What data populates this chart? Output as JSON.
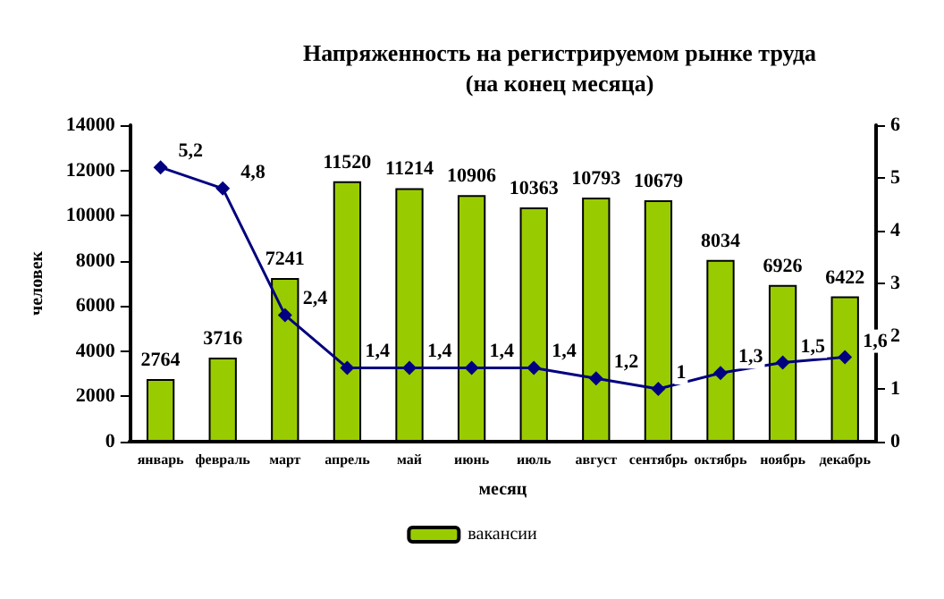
{
  "chart_data": {
    "type": "bar",
    "title": "Напряженность на регистрируемом рынке труда",
    "subtitle": "(на конец месяца)",
    "xlabel": "месяц",
    "ylabel": "человек",
    "categories": [
      "январь",
      "февраль",
      "март",
      "апрель",
      "май",
      "июнь",
      "июль",
      "август",
      "сентябрь",
      "октябрь",
      "ноябрь",
      "декабрь"
    ],
    "series": [
      {
        "name": "вакансии",
        "color": "#99cc00",
        "values": [
          2764,
          3716,
          7241,
          11520,
          11214,
          10906,
          10363,
          10793,
          10679,
          8034,
          6926,
          6422
        ]
      },
      {
        "type": "line",
        "axis": "y2",
        "color": "#000080",
        "marker": "diamond",
        "values": [
          5.2,
          4.8,
          2.4,
          1.4,
          1.4,
          1.4,
          1.4,
          1.2,
          1,
          1.3,
          1.5,
          1.6
        ],
        "value_labels": [
          "5,2",
          "4,8",
          "2,4",
          "1,4",
          "1,4",
          "1,4",
          "1,4",
          "1,2",
          "1",
          "1,3",
          "1,5",
          "1,6"
        ]
      }
    ],
    "ylim": [
      0,
      14000
    ],
    "yticks": [
      0,
      2000,
      4000,
      6000,
      8000,
      10000,
      12000,
      14000
    ],
    "y2lim": [
      0,
      6
    ],
    "y2ticks": [
      0,
      1,
      2,
      3,
      4,
      5,
      6
    ],
    "data_labels": true,
    "legend": "bottom",
    "grid": false
  }
}
